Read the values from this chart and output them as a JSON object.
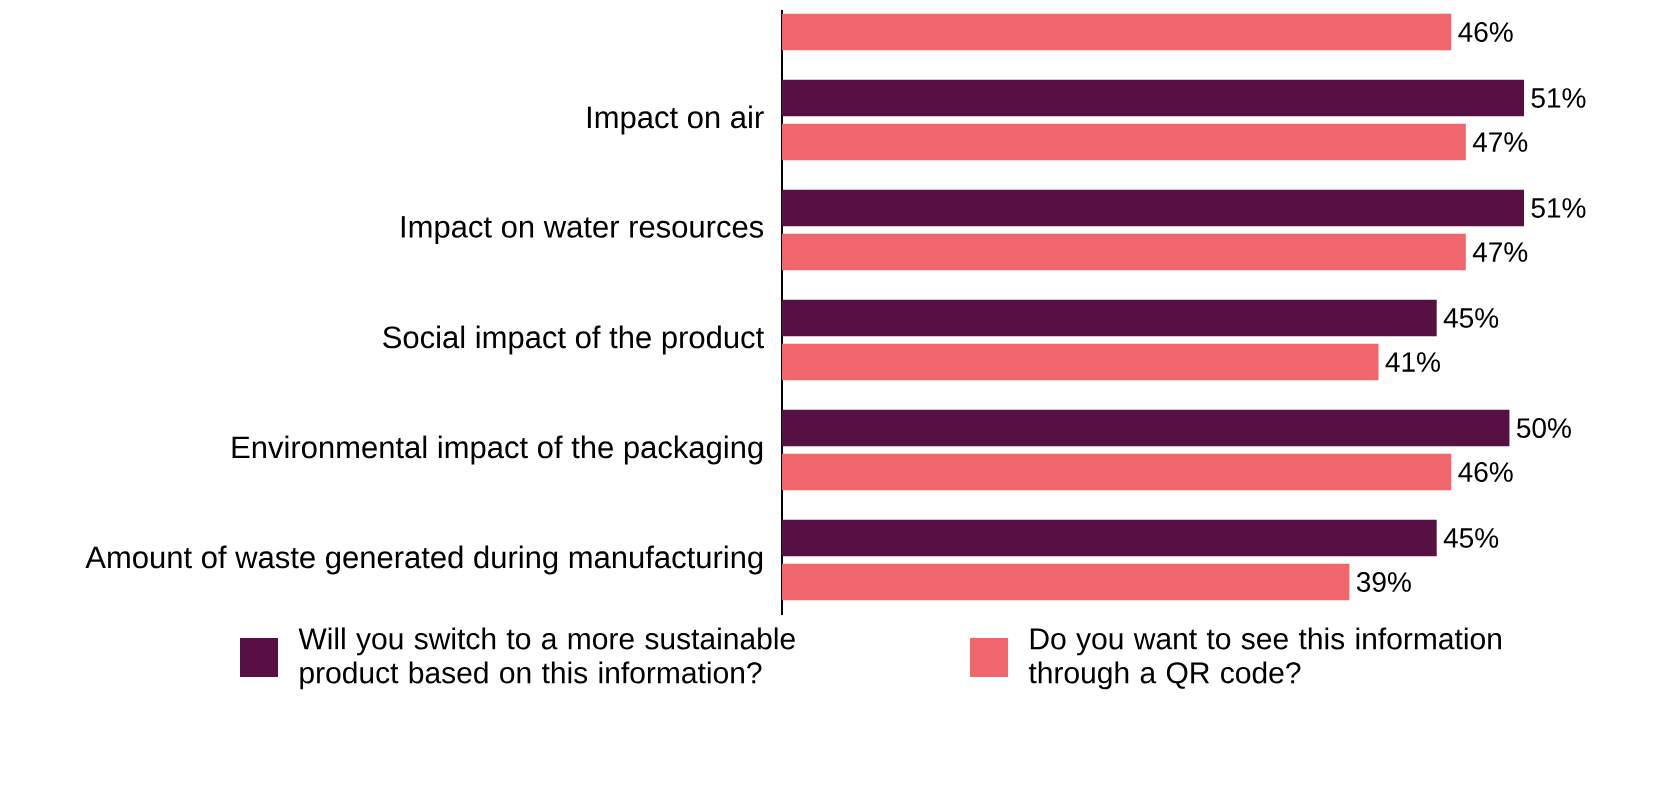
{
  "chart_data": {
    "type": "bar",
    "orientation": "horizontal",
    "categories": [
      null,
      "Impact on air",
      "Impact on water resources",
      "Social impact of the product",
      "Environmental impact of the packaging",
      "Amount of waste generated during manufacturing"
    ],
    "series": [
      {
        "name": "Will you switch to a more sustainable product based on this information?",
        "color": "#561043",
        "values": [
          null,
          51,
          51,
          45,
          50,
          45
        ],
        "value_labels": [
          null,
          "51%",
          "51%",
          "45%",
          "50%",
          "45%"
        ]
      },
      {
        "name": "Do you want to see this information through a QR code?",
        "color": "#f0666c",
        "values": [
          46,
          47,
          47,
          41,
          46,
          39
        ],
        "value_labels": [
          "46%",
          "47%",
          "47%",
          "41%",
          "46%",
          "39%"
        ]
      }
    ],
    "legend": "bottom"
  }
}
